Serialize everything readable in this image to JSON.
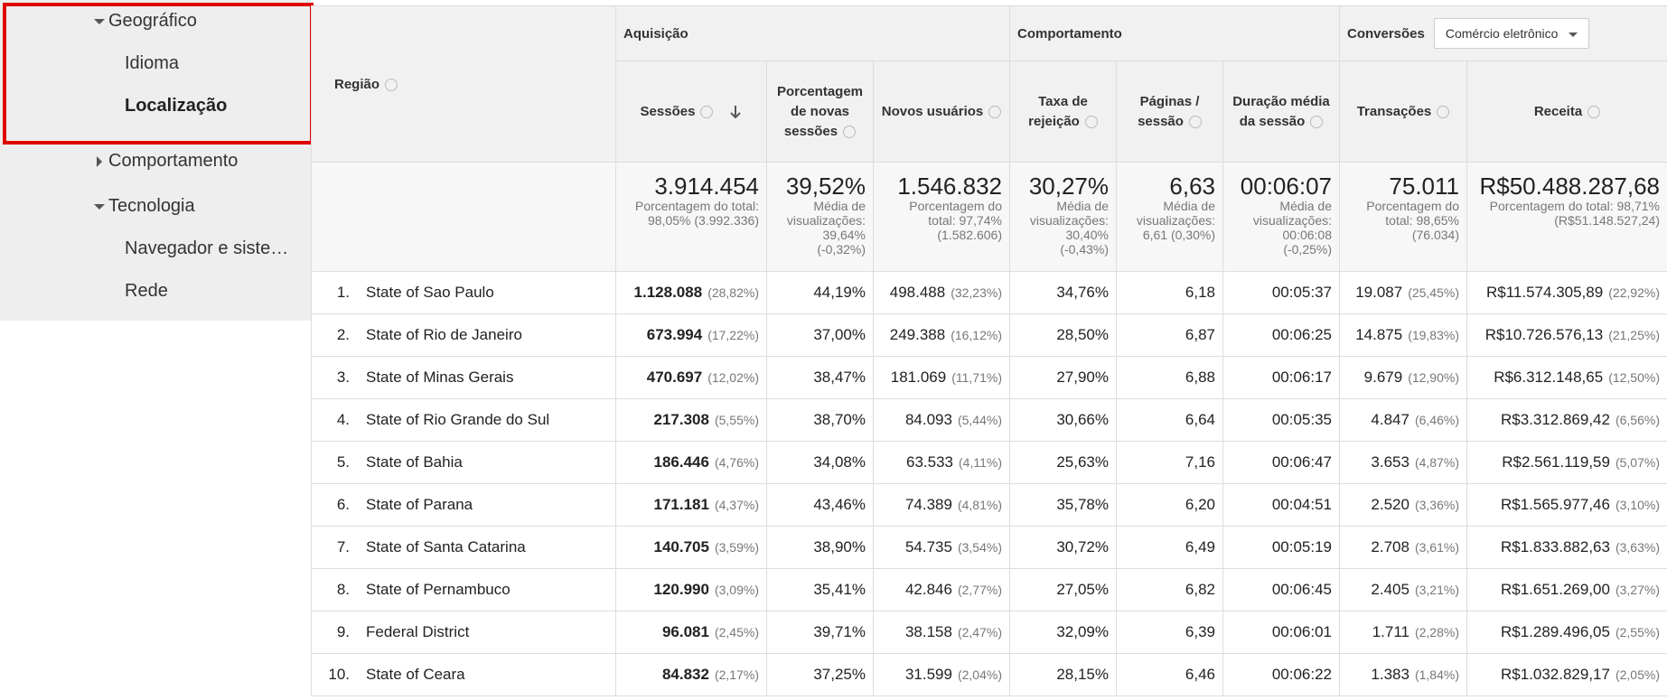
{
  "sidebar": {
    "items": [
      "Geográfico",
      "Idioma",
      "Localização",
      "Comportamento",
      "Tecnologia",
      "Navegador e siste…",
      "Rede"
    ]
  },
  "table": {
    "region_header": "Região",
    "groups": [
      "Aquisição",
      "Comportamento",
      "Conversões"
    ],
    "conversion_select": "Comércio eletrônico",
    "columns": [
      "Sessões",
      "Porcentagem de novas sessões",
      "Novos usuários",
      "Taxa de rejeição",
      "Páginas / sessão",
      "Duração média da sessão",
      "Transações",
      "Receita"
    ],
    "totals": [
      [
        "3.914.454",
        "Porcentagem do total: 98,05% (3.992.336)"
      ],
      [
        "39,52%",
        "Média de visualizações: 39,64% (-0,32%)"
      ],
      [
        "1.546.832",
        "Porcentagem do total: 97,74% (1.582.606)"
      ],
      [
        "30,27%",
        "Média de visualizações: 30,40% (-0,43%)"
      ],
      [
        "6,63",
        "Média de visualizações: 6,61 (0,30%)"
      ],
      [
        "00:06:07",
        "Média de visualizações: 00:06:08 (-0,25%)"
      ],
      [
        "75.011",
        "Porcentagem do total: 98,65% (76.034)"
      ],
      [
        "R$50.488.287,68",
        "Porcentagem do total: 98,71% (R$51.148.527,24)"
      ]
    ],
    "rows": [
      {
        "rank": "1.",
        "region": "State of Sao Paulo",
        "cells": [
          [
            "1.128.088",
            "(28,82%)"
          ],
          [
            "44,19%"
          ],
          [
            "498.488",
            "(32,23%)"
          ],
          [
            "34,76%"
          ],
          [
            "6,18"
          ],
          [
            "00:05:37"
          ],
          [
            "19.087",
            "(25,45%)"
          ],
          [
            "R$11.574.305,89",
            "(22,92%)"
          ]
        ]
      },
      {
        "rank": "2.",
        "region": "State of Rio de Janeiro",
        "cells": [
          [
            "673.994",
            "(17,22%)"
          ],
          [
            "37,00%"
          ],
          [
            "249.388",
            "(16,12%)"
          ],
          [
            "28,50%"
          ],
          [
            "6,87"
          ],
          [
            "00:06:25"
          ],
          [
            "14.875",
            "(19,83%)"
          ],
          [
            "R$10.726.576,13",
            "(21,25%)"
          ]
        ]
      },
      {
        "rank": "3.",
        "region": "State of Minas Gerais",
        "cells": [
          [
            "470.697",
            "(12,02%)"
          ],
          [
            "38,47%"
          ],
          [
            "181.069",
            "(11,71%)"
          ],
          [
            "27,90%"
          ],
          [
            "6,88"
          ],
          [
            "00:06:17"
          ],
          [
            "9.679",
            "(12,90%)"
          ],
          [
            "R$6.312.148,65",
            "(12,50%)"
          ]
        ]
      },
      {
        "rank": "4.",
        "region": "State of Rio Grande do Sul",
        "cells": [
          [
            "217.308",
            "(5,55%)"
          ],
          [
            "38,70%"
          ],
          [
            "84.093",
            "(5,44%)"
          ],
          [
            "30,66%"
          ],
          [
            "6,64"
          ],
          [
            "00:05:35"
          ],
          [
            "4.847",
            "(6,46%)"
          ],
          [
            "R$3.312.869,42",
            "(6,56%)"
          ]
        ]
      },
      {
        "rank": "5.",
        "region": "State of Bahia",
        "cells": [
          [
            "186.446",
            "(4,76%)"
          ],
          [
            "34,08%"
          ],
          [
            "63.533",
            "(4,11%)"
          ],
          [
            "25,63%"
          ],
          [
            "7,16"
          ],
          [
            "00:06:47"
          ],
          [
            "3.653",
            "(4,87%)"
          ],
          [
            "R$2.561.119,59",
            "(5,07%)"
          ]
        ]
      },
      {
        "rank": "6.",
        "region": "State of Parana",
        "cells": [
          [
            "171.181",
            "(4,37%)"
          ],
          [
            "43,46%"
          ],
          [
            "74.389",
            "(4,81%)"
          ],
          [
            "35,78%"
          ],
          [
            "6,20"
          ],
          [
            "00:04:51"
          ],
          [
            "2.520",
            "(3,36%)"
          ],
          [
            "R$1.565.977,46",
            "(3,10%)"
          ]
        ]
      },
      {
        "rank": "7.",
        "region": "State of Santa Catarina",
        "cells": [
          [
            "140.705",
            "(3,59%)"
          ],
          [
            "38,90%"
          ],
          [
            "54.735",
            "(3,54%)"
          ],
          [
            "30,72%"
          ],
          [
            "6,49"
          ],
          [
            "00:05:19"
          ],
          [
            "2.708",
            "(3,61%)"
          ],
          [
            "R$1.833.882,63",
            "(3,63%)"
          ]
        ]
      },
      {
        "rank": "8.",
        "region": "State of Pernambuco",
        "cells": [
          [
            "120.990",
            "(3,09%)"
          ],
          [
            "35,41%"
          ],
          [
            "42.846",
            "(2,77%)"
          ],
          [
            "27,05%"
          ],
          [
            "6,82"
          ],
          [
            "00:06:45"
          ],
          [
            "2.405",
            "(3,21%)"
          ],
          [
            "R$1.651.269,00",
            "(3,27%)"
          ]
        ]
      },
      {
        "rank": "9.",
        "region": "Federal District",
        "cells": [
          [
            "96.081",
            "(2,45%)"
          ],
          [
            "39,71%"
          ],
          [
            "38.158",
            "(2,47%)"
          ],
          [
            "32,09%"
          ],
          [
            "6,39"
          ],
          [
            "00:06:01"
          ],
          [
            "1.711",
            "(2,28%)"
          ],
          [
            "R$1.289.496,05",
            "(2,55%)"
          ]
        ]
      },
      {
        "rank": "10.",
        "region": "State of Ceara",
        "cells": [
          [
            "84.832",
            "(2,17%)"
          ],
          [
            "37,25%"
          ],
          [
            "31.599",
            "(2,04%)"
          ],
          [
            "28,15%"
          ],
          [
            "6,46"
          ],
          [
            "00:06:22"
          ],
          [
            "1.383",
            "(1,84%)"
          ],
          [
            "R$1.032.829,17",
            "(2,05%)"
          ]
        ]
      }
    ]
  }
}
